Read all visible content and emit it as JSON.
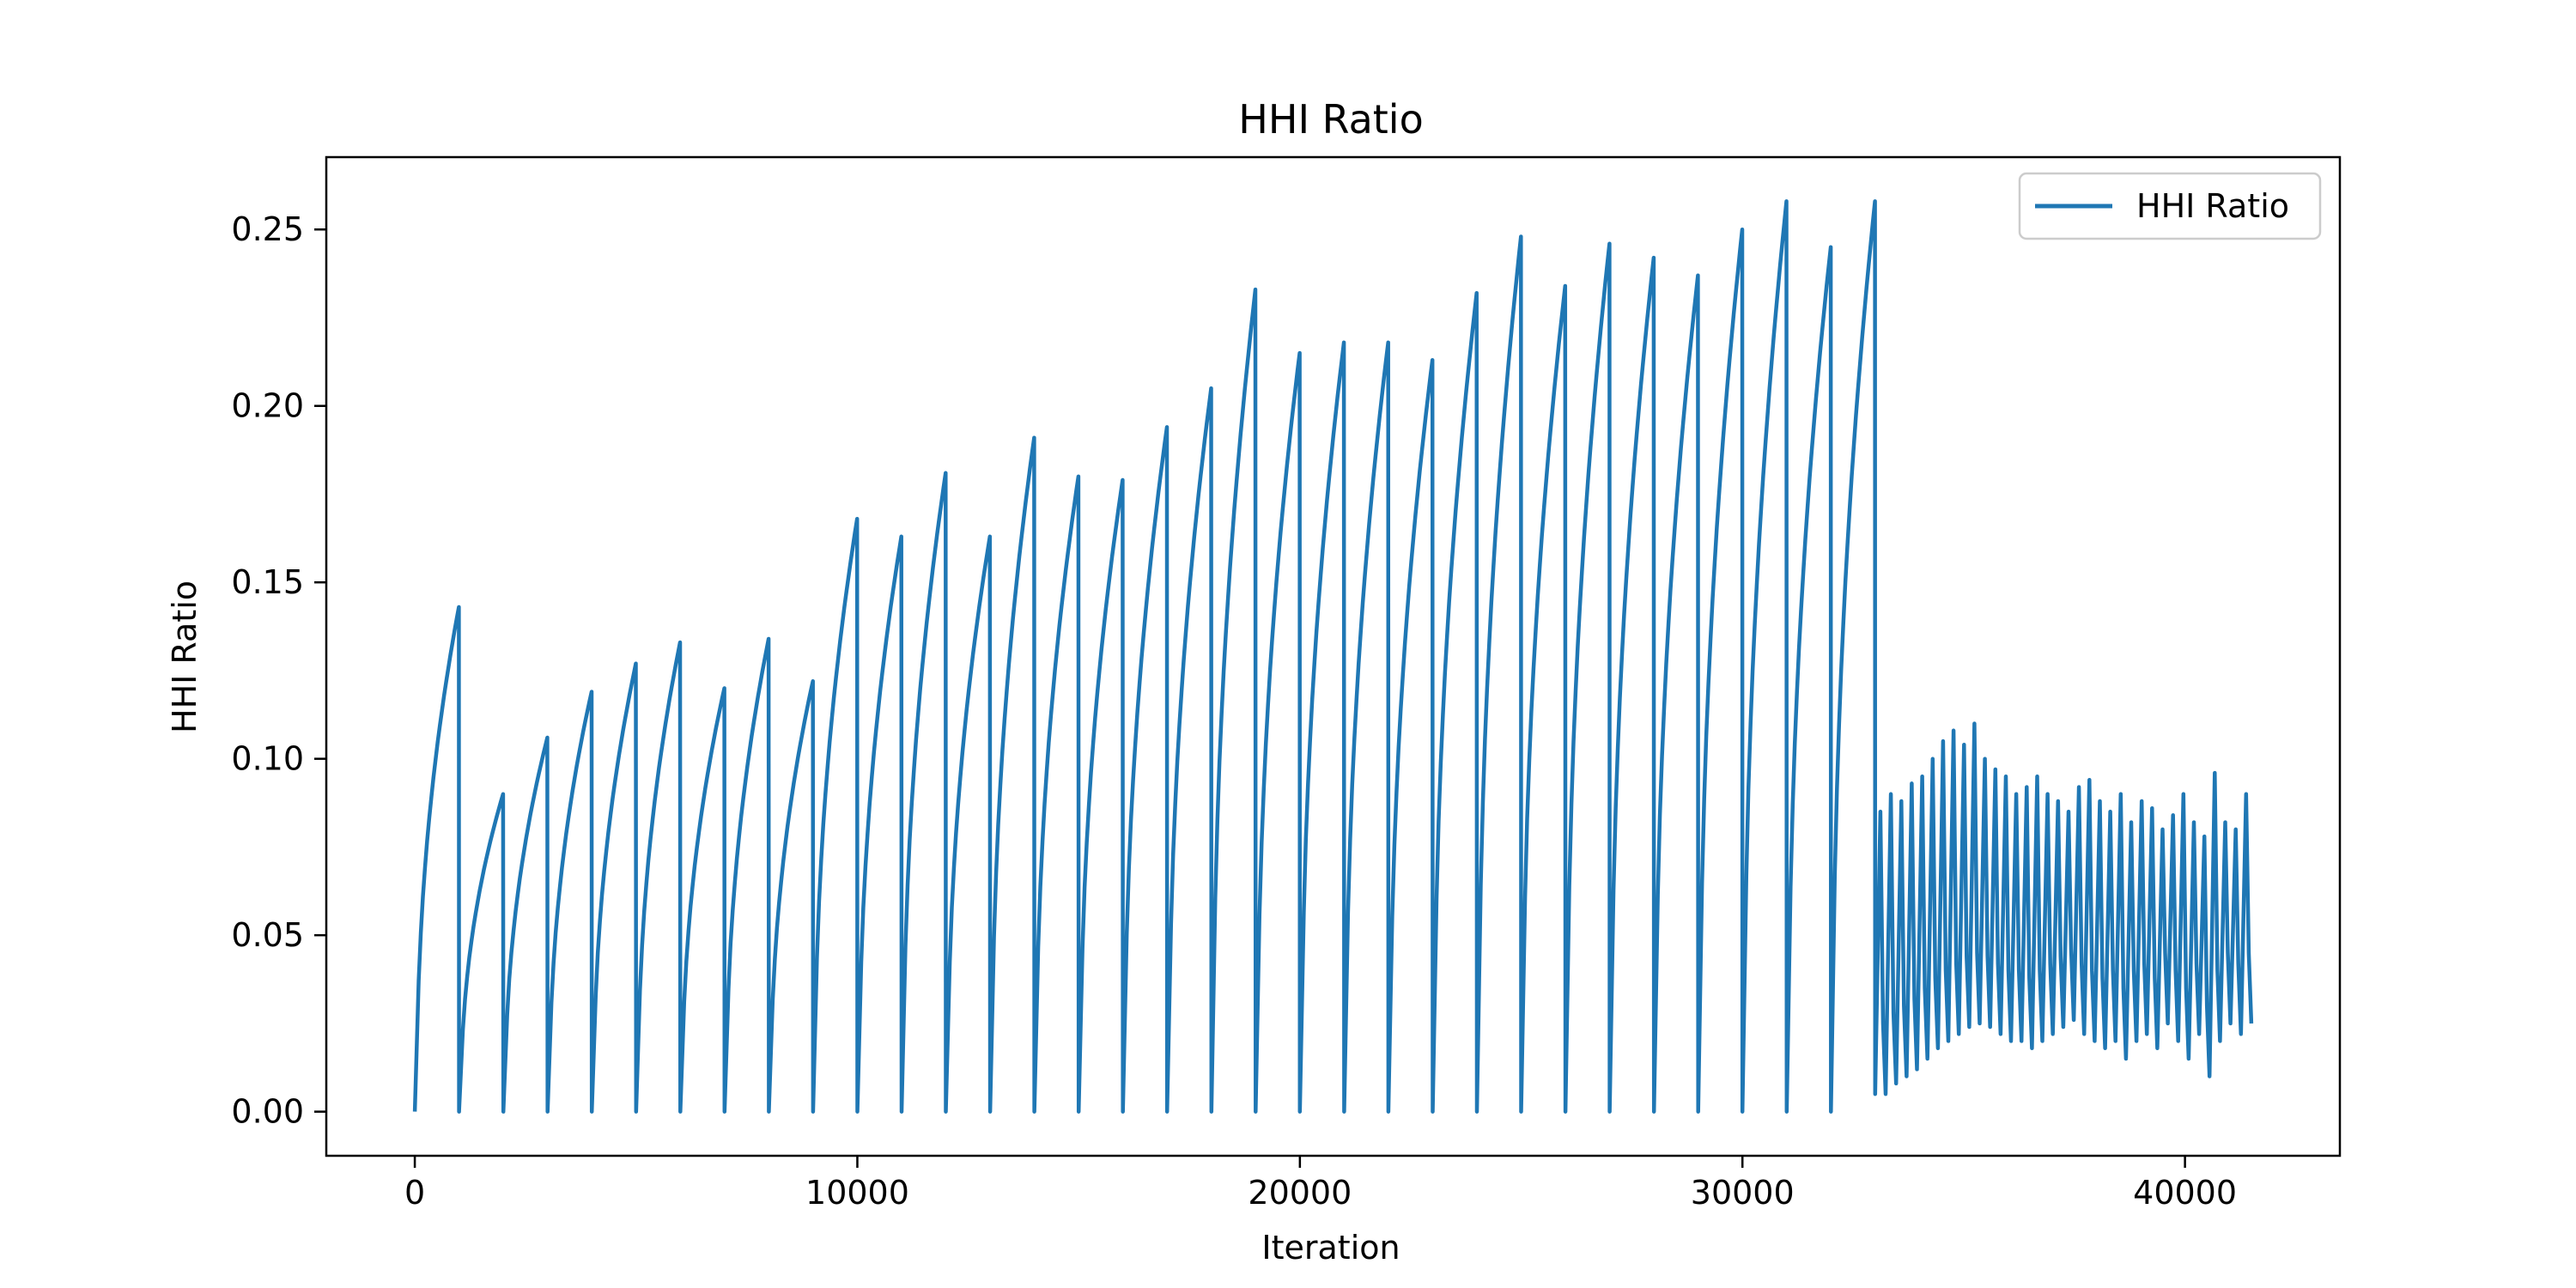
{
  "chart_data": {
    "type": "line",
    "title": "HHI Ratio",
    "xlabel": "Iteration",
    "ylabel": "HHI Ratio",
    "xlim": [
      -2000,
      43500
    ],
    "ylim": [
      -0.0125,
      0.2705
    ],
    "x_ticks": [
      0,
      10000,
      20000,
      30000,
      40000
    ],
    "x_tick_labels": [
      "0",
      "10000",
      "20000",
      "30000",
      "40000"
    ],
    "y_ticks": [
      0.0,
      0.05,
      0.1,
      0.15,
      0.2,
      0.25
    ],
    "y_tick_labels": [
      "0.00",
      "0.05",
      "0.10",
      "0.15",
      "0.20",
      "0.25"
    ],
    "grid": false,
    "legend": {
      "position": "top-right",
      "entries": [
        "HHI Ratio"
      ]
    },
    "colors": {
      "series": "#1f77b4"
    },
    "cycle_length": 1000,
    "sawtooth_peaks": [
      0.143,
      0.09,
      0.106,
      0.119,
      0.127,
      0.133,
      0.12,
      0.134,
      0.122,
      0.168,
      0.163,
      0.181,
      0.163,
      0.191,
      0.18,
      0.179,
      0.194,
      0.205,
      0.233,
      0.215,
      0.218,
      0.218,
      0.213,
      0.232,
      0.248,
      0.234,
      0.246,
      0.242,
      0.237,
      0.25,
      0.258,
      0.245,
      0.258
    ],
    "oscillation": {
      "x_start": 33000,
      "x_end": 41500,
      "period": 250,
      "peaks": [
        0.085,
        0.09,
        0.088,
        0.093,
        0.095,
        0.1,
        0.105,
        0.108,
        0.104,
        0.11,
        0.1,
        0.097,
        0.095,
        0.09,
        0.092,
        0.095,
        0.09,
        0.088,
        0.085,
        0.092,
        0.094,
        0.088,
        0.085,
        0.09,
        0.082,
        0.088,
        0.086,
        0.08,
        0.084,
        0.09,
        0.082,
        0.078,
        0.096,
        0.082,
        0.08,
        0.09
      ],
      "troughs": [
        0.005,
        0.008,
        0.01,
        0.012,
        0.015,
        0.018,
        0.02,
        0.022,
        0.024,
        0.025,
        0.024,
        0.022,
        0.02,
        0.02,
        0.018,
        0.02,
        0.022,
        0.024,
        0.026,
        0.022,
        0.02,
        0.018,
        0.02,
        0.015,
        0.02,
        0.022,
        0.018,
        0.025,
        0.02,
        0.015,
        0.022,
        0.01,
        0.02,
        0.025,
        0.022,
        0.025
      ]
    }
  }
}
